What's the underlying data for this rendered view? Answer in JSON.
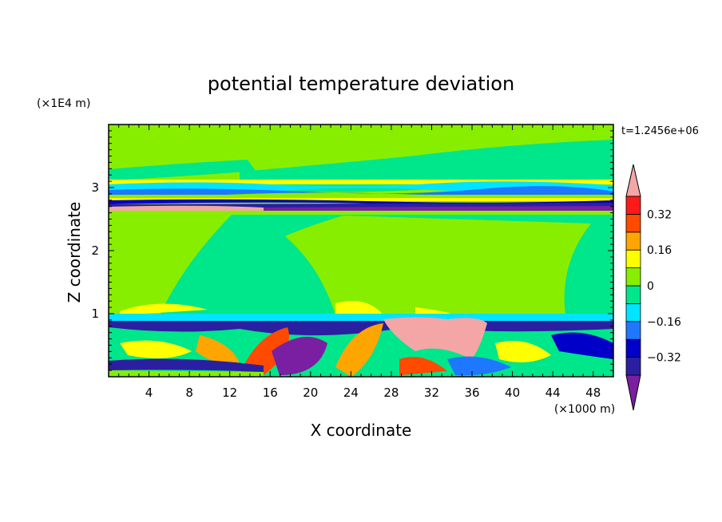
{
  "chart_data": {
    "type": "heatmap",
    "title": "potential temperature deviation",
    "xlabel": "X coordinate",
    "ylabel": "Z coordinate",
    "x_unit": "(×1000 m)",
    "y_unit": "(×1E4 m)",
    "time_label": "t=1.2456e+06",
    "xlim": [
      0,
      50
    ],
    "ylim": [
      0,
      4
    ],
    "x_ticks": [
      "4",
      "8",
      "12",
      "16",
      "20",
      "24",
      "28",
      "32",
      "36",
      "40",
      "44",
      "48"
    ],
    "y_ticks": [
      "1",
      "2",
      "3"
    ],
    "colorbar": {
      "levels": [
        -0.4,
        -0.32,
        -0.24,
        -0.16,
        -0.08,
        0,
        0.08,
        0.16,
        0.24,
        0.32,
        0.4
      ],
      "labels": [
        "0.32",
        "0.16",
        "0",
        "−0.16",
        "−0.32"
      ],
      "colors": [
        "#7a1fa2",
        "#2a1fa0",
        "#0000c8",
        "#1e78ff",
        "#00e5ff",
        "#00e68a",
        "#88ee00",
        "#ffff00",
        "#ffa500",
        "#ff4a00",
        "#ff1a1a",
        "#f4a6a6"
      ]
    }
  }
}
